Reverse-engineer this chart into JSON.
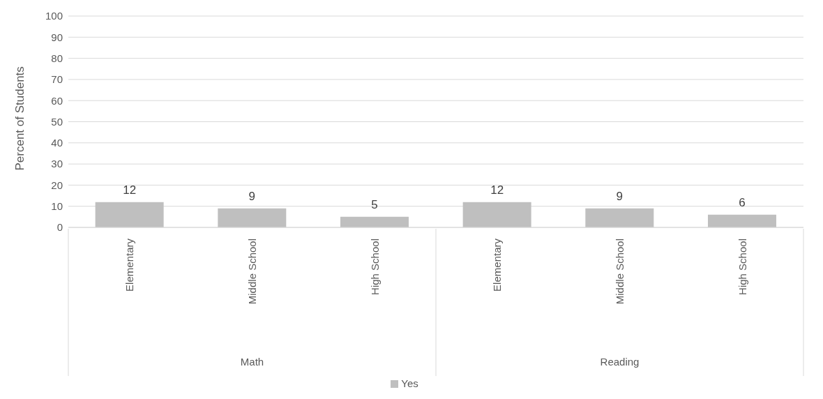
{
  "chart_data": {
    "type": "bar",
    "ylabel": "Percent of Students",
    "categories": [
      "Elementary",
      "Middle School",
      "High School",
      "Elementary",
      "Middle School",
      "High School"
    ],
    "annotations": [
      "Math",
      "Reading"
    ],
    "series": [
      {
        "name": "Yes",
        "color": "#bfbfbf",
        "values": [
          12,
          9,
          5,
          12,
          9,
          6
        ]
      }
    ],
    "ylim": [
      0,
      100
    ],
    "yticks": [
      0,
      10,
      20,
      30,
      40,
      50,
      60,
      70,
      80,
      90,
      100
    ],
    "grid": "y",
    "legend": "bottom",
    "data_labels": true
  }
}
